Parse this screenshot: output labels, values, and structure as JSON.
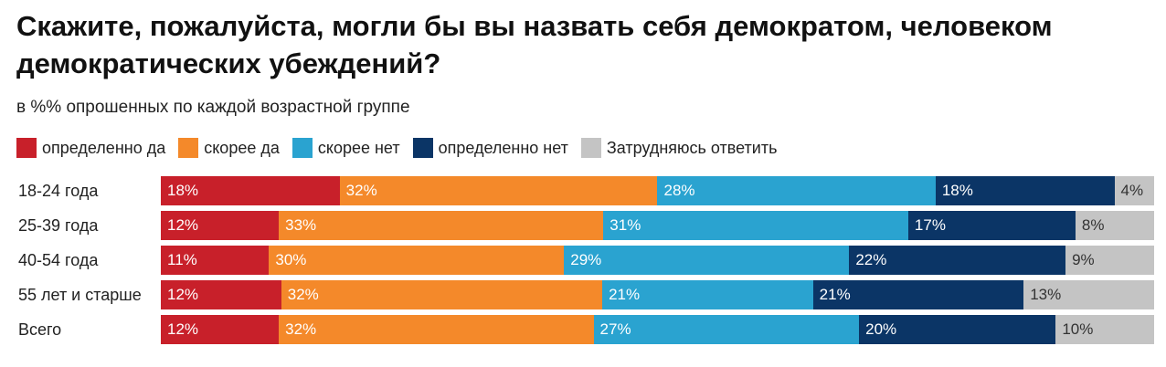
{
  "title": "Скажите, пожалуйста, могли бы вы назвать себя демократом, человеком демократических убеждений?",
  "subtitle": "в %% опрошенных по каждой возрастной группе",
  "colors": {
    "definitely_yes": "#c8202a",
    "rather_yes": "#f4892a",
    "rather_no": "#2aa3d0",
    "definitely_no": "#0b3566",
    "hard_to_say": "#c4c4c4"
  },
  "chart_data": {
    "type": "bar",
    "orientation": "horizontal",
    "stacked": true,
    "title": "Скажите, пожалуйста, могли бы вы назвать себя демократом, человеком демократических убеждений?",
    "subtitle": "в %% опрошенных по каждой возрастной группе",
    "legend_position": "top-left",
    "categories": [
      "18-24 года",
      "25-39 года",
      "40-54 года",
      "55 лет и старше",
      "Всего"
    ],
    "series": [
      {
        "name": "определенно да",
        "color": "#c8202a",
        "values": [
          18,
          12,
          11,
          12,
          12
        ]
      },
      {
        "name": "скорее да",
        "color": "#f4892a",
        "values": [
          32,
          33,
          30,
          32,
          32
        ]
      },
      {
        "name": "скорее нет",
        "color": "#2aa3d0",
        "values": [
          28,
          31,
          29,
          21,
          27
        ]
      },
      {
        "name": "определенно нет",
        "color": "#0b3566",
        "values": [
          18,
          17,
          22,
          21,
          20
        ]
      },
      {
        "name": "Затрудняюсь ответить",
        "color": "#c4c4c4",
        "values": [
          4,
          8,
          9,
          13,
          10
        ]
      }
    ]
  }
}
